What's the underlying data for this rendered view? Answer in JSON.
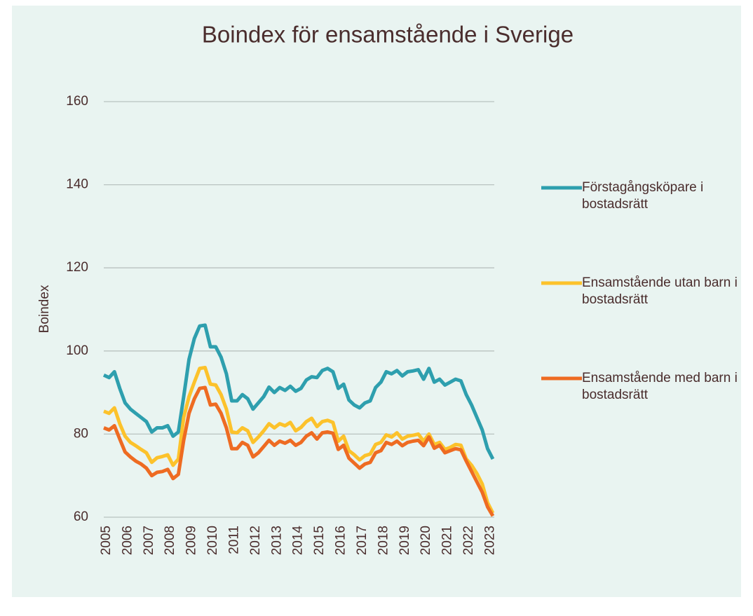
{
  "chart_data": {
    "type": "line",
    "title": "Boindex för ensamstående i Sverige",
    "y_label": "Boindex",
    "categories": [
      "2005",
      null,
      null,
      null,
      "2006",
      null,
      null,
      null,
      "2007",
      null,
      null,
      null,
      "2008",
      null,
      null,
      null,
      "2009",
      null,
      null,
      null,
      "2010",
      null,
      null,
      null,
      "2011",
      null,
      null,
      null,
      "2012",
      null,
      null,
      null,
      "2013",
      null,
      null,
      null,
      "2014",
      null,
      null,
      null,
      "2015",
      null,
      null,
      null,
      "2016",
      null,
      null,
      null,
      "2017",
      null,
      null,
      null,
      "2018",
      null,
      null,
      null,
      "2019",
      null,
      null,
      null,
      "2020",
      null,
      null,
      null,
      "2021",
      null,
      null,
      null,
      "2022",
      null,
      null,
      null,
      "2023",
      null
    ],
    "series": [
      {
        "name": "Förstagångsköpare i bostadsrätt",
        "color": "#2e9fae",
        "values": [
          94.2,
          93.6,
          95,
          91,
          87.5,
          86,
          85,
          84,
          83,
          80.5,
          81.5,
          81.5,
          82,
          79.5,
          80.5,
          89,
          98,
          103,
          106,
          106.2,
          101,
          101,
          98.5,
          94.5,
          88,
          88,
          89.5,
          88.5,
          86,
          87.5,
          89,
          91.3,
          90,
          91.2,
          90.5,
          91.5,
          90.3,
          91,
          93,
          93.8,
          93.6,
          95.3,
          95.8,
          95,
          91,
          92,
          88.2,
          87,
          86.3,
          87.5,
          88,
          91.2,
          92.5,
          95,
          94.5,
          95.3,
          94,
          95,
          95.2,
          95.5,
          93.2,
          95.8,
          92.5,
          93.2,
          91.8,
          92.5,
          93.2,
          92.8,
          89.5,
          87,
          84,
          81,
          76.5,
          74
        ]
      },
      {
        "name": "Ensamstående utan barn i bostadsrätt",
        "color": "#fcc22b",
        "values": [
          85.5,
          85,
          86.3,
          82.5,
          79.5,
          78,
          77.2,
          76.3,
          75.5,
          73.2,
          74.3,
          74.6,
          75,
          72.5,
          74,
          84,
          89,
          92.5,
          95.8,
          96,
          92,
          91.8,
          89.5,
          86,
          80.5,
          80.3,
          81.5,
          80.8,
          78,
          79.3,
          80.8,
          82.5,
          81.5,
          82.5,
          82,
          82.8,
          80.8,
          81.6,
          83,
          83.8,
          81.8,
          83,
          83.3,
          82.8,
          78.3,
          79.5,
          76,
          75,
          73.8,
          74.8,
          75.2,
          77.5,
          78,
          79.8,
          79.3,
          80.3,
          78.8,
          79.5,
          79.7,
          80,
          78.3,
          80,
          77.5,
          78,
          76.3,
          76.8,
          77.5,
          77.3,
          74,
          72.5,
          70.5,
          68,
          63.5,
          61
        ]
      },
      {
        "name": "Ensamstående med barn i bostadsrätt",
        "color": "#ee6b22",
        "values": [
          81.5,
          81,
          82,
          78.8,
          75.7,
          74.5,
          73.5,
          72.8,
          71.8,
          70,
          70.8,
          71,
          71.5,
          69.3,
          70.3,
          78.5,
          85,
          88.5,
          91,
          91.2,
          87,
          87.2,
          85,
          81.5,
          76.5,
          76.5,
          78,
          77.3,
          74.5,
          75.5,
          77,
          78.5,
          77.3,
          78.3,
          77.8,
          78.5,
          77.3,
          78,
          79.5,
          80.3,
          78.8,
          80.3,
          80.5,
          80.2,
          76.3,
          77.3,
          74.2,
          73,
          71.8,
          72.8,
          73.2,
          75.5,
          76,
          78,
          77.5,
          78.3,
          77.2,
          78,
          78.3,
          78.5,
          77.2,
          79.3,
          76.6,
          77.3,
          75.5,
          76,
          76.5,
          76.2,
          73.5,
          71,
          68.5,
          66,
          62.5,
          60.3
        ]
      }
    ],
    "ylim": [
      60,
      160
    ],
    "yticks": [
      60,
      80,
      100,
      120,
      140,
      160
    ],
    "grid": true,
    "legend": "right"
  }
}
